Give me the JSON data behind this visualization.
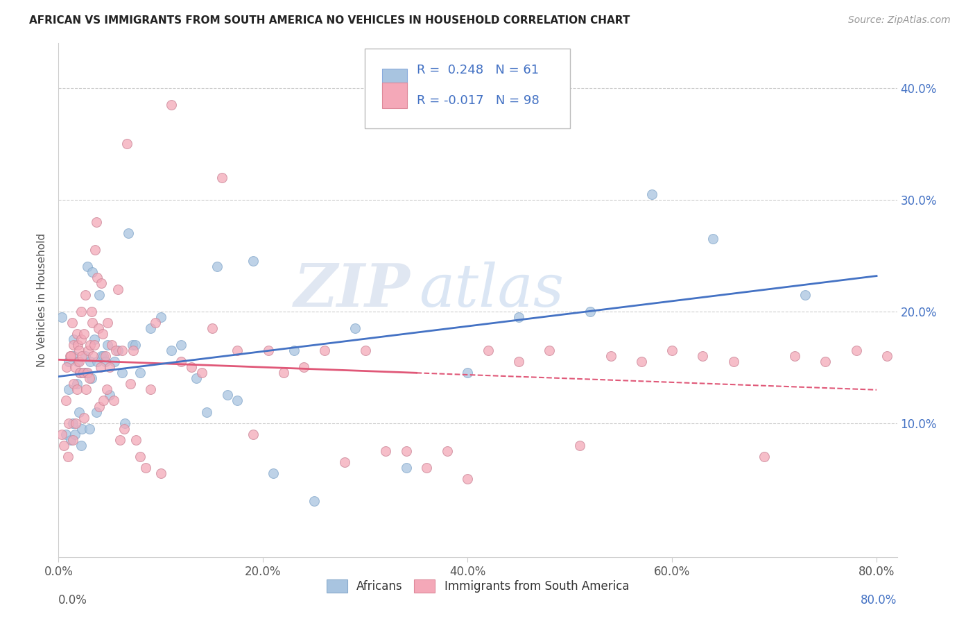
{
  "title": "AFRICAN VS IMMIGRANTS FROM SOUTH AMERICA NO VEHICLES IN HOUSEHOLD CORRELATION CHART",
  "source": "Source: ZipAtlas.com",
  "ylabel": "No Vehicles in Household",
  "xlim": [
    0.0,
    0.82
  ],
  "ylim": [
    -0.02,
    0.44
  ],
  "plot_xlim": [
    0.0,
    0.8
  ],
  "plot_ylim": [
    0.0,
    0.42
  ],
  "legend_labels": [
    "Africans",
    "Immigrants from South America"
  ],
  "R_african": 0.248,
  "N_african": 61,
  "R_sa": -0.017,
  "N_sa": 98,
  "color_african": "#a8c4e0",
  "color_sa": "#f4a8b8",
  "line_color_african": "#4472c4",
  "line_color_sa": "#e05878",
  "watermark_zip": "ZIP",
  "watermark_atlas": "atlas",
  "background_color": "#ffffff",
  "grid_color": "#c8c8c8",
  "tick_color": "#4472c4",
  "african_x": [
    0.003,
    0.007,
    0.01,
    0.01,
    0.012,
    0.014,
    0.015,
    0.015,
    0.016,
    0.018,
    0.019,
    0.02,
    0.021,
    0.022,
    0.023,
    0.025,
    0.026,
    0.027,
    0.028,
    0.03,
    0.031,
    0.032,
    0.033,
    0.035,
    0.037,
    0.038,
    0.04,
    0.042,
    0.044,
    0.046,
    0.048,
    0.05,
    0.055,
    0.058,
    0.062,
    0.065,
    0.068,
    0.072,
    0.075,
    0.08,
    0.09,
    0.1,
    0.11,
    0.12,
    0.135,
    0.145,
    0.155,
    0.165,
    0.175,
    0.19,
    0.21,
    0.23,
    0.25,
    0.29,
    0.34,
    0.4,
    0.45,
    0.52,
    0.58,
    0.64,
    0.73
  ],
  "african_y": [
    0.195,
    0.09,
    0.13,
    0.155,
    0.085,
    0.1,
    0.16,
    0.175,
    0.09,
    0.135,
    0.155,
    0.11,
    0.145,
    0.08,
    0.095,
    0.145,
    0.16,
    0.145,
    0.24,
    0.095,
    0.155,
    0.14,
    0.235,
    0.175,
    0.11,
    0.155,
    0.215,
    0.16,
    0.16,
    0.155,
    0.17,
    0.125,
    0.155,
    0.165,
    0.145,
    0.1,
    0.27,
    0.17,
    0.17,
    0.145,
    0.185,
    0.195,
    0.165,
    0.17,
    0.14,
    0.11,
    0.24,
    0.125,
    0.12,
    0.245,
    0.055,
    0.165,
    0.03,
    0.185,
    0.06,
    0.145,
    0.195,
    0.2,
    0.305,
    0.265,
    0.215
  ],
  "sa_x": [
    0.003,
    0.005,
    0.007,
    0.008,
    0.009,
    0.01,
    0.011,
    0.012,
    0.013,
    0.014,
    0.015,
    0.015,
    0.016,
    0.017,
    0.018,
    0.018,
    0.019,
    0.02,
    0.02,
    0.021,
    0.022,
    0.022,
    0.023,
    0.024,
    0.025,
    0.025,
    0.026,
    0.027,
    0.028,
    0.029,
    0.03,
    0.031,
    0.032,
    0.033,
    0.034,
    0.035,
    0.036,
    0.037,
    0.038,
    0.039,
    0.04,
    0.041,
    0.042,
    0.043,
    0.044,
    0.046,
    0.047,
    0.048,
    0.05,
    0.052,
    0.054,
    0.056,
    0.058,
    0.06,
    0.062,
    0.064,
    0.067,
    0.07,
    0.073,
    0.076,
    0.08,
    0.085,
    0.09,
    0.095,
    0.1,
    0.11,
    0.12,
    0.13,
    0.14,
    0.15,
    0.16,
    0.175,
    0.19,
    0.205,
    0.22,
    0.24,
    0.26,
    0.28,
    0.3,
    0.32,
    0.34,
    0.36,
    0.38,
    0.4,
    0.42,
    0.45,
    0.48,
    0.51,
    0.54,
    0.57,
    0.6,
    0.63,
    0.66,
    0.69,
    0.72,
    0.75,
    0.78,
    0.81
  ],
  "sa_y": [
    0.09,
    0.08,
    0.12,
    0.15,
    0.07,
    0.1,
    0.16,
    0.16,
    0.19,
    0.085,
    0.135,
    0.17,
    0.15,
    0.1,
    0.13,
    0.18,
    0.17,
    0.155,
    0.165,
    0.145,
    0.175,
    0.2,
    0.16,
    0.145,
    0.18,
    0.105,
    0.215,
    0.13,
    0.145,
    0.165,
    0.14,
    0.17,
    0.2,
    0.19,
    0.16,
    0.17,
    0.255,
    0.28,
    0.23,
    0.185,
    0.115,
    0.15,
    0.225,
    0.18,
    0.12,
    0.16,
    0.13,
    0.19,
    0.15,
    0.17,
    0.12,
    0.165,
    0.22,
    0.085,
    0.165,
    0.095,
    0.35,
    0.135,
    0.165,
    0.085,
    0.07,
    0.06,
    0.13,
    0.19,
    0.055,
    0.385,
    0.155,
    0.15,
    0.145,
    0.185,
    0.32,
    0.165,
    0.09,
    0.165,
    0.145,
    0.15,
    0.165,
    0.065,
    0.165,
    0.075,
    0.075,
    0.06,
    0.075,
    0.05,
    0.165,
    0.155,
    0.165,
    0.08,
    0.16,
    0.155,
    0.165,
    0.16,
    0.155,
    0.07,
    0.16,
    0.155,
    0.165,
    0.16
  ]
}
